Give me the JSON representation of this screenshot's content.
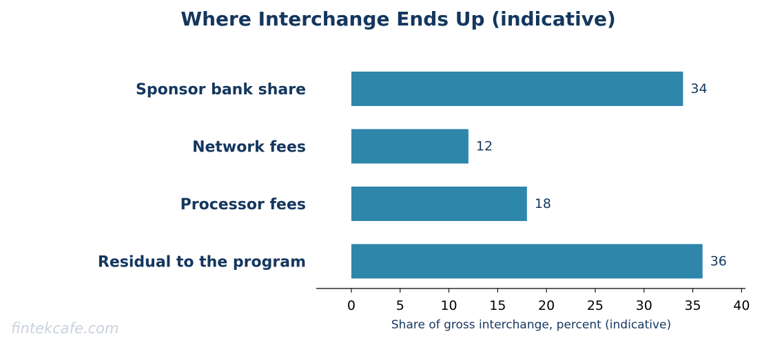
{
  "chart_data": {
    "type": "bar",
    "orientation": "horizontal",
    "title": "Where Interchange Ends Up (indicative)",
    "xlabel": "Share of gross interchange, percent (indicative)",
    "ylabel": "",
    "categories": [
      "Sponsor bank share",
      "Network fees",
      "Processor fees",
      "Residual to the program"
    ],
    "values": [
      34,
      12,
      18,
      36
    ],
    "data_labels": [
      "34",
      "12",
      "18",
      "36"
    ],
    "xlim": [
      -3.6,
      40.4
    ],
    "xticks": [
      0,
      5,
      10,
      15,
      20,
      25,
      30,
      35,
      40
    ],
    "xtick_labels": [
      "0",
      "5",
      "10",
      "15",
      "20",
      "25",
      "30",
      "35",
      "40"
    ],
    "grid": false,
    "legend": "none"
  },
  "watermark": "fintekcafe.com",
  "colors": {
    "bar": "#2e86ab",
    "title": "#14375e",
    "labels": "#14375e",
    "axis": "#000000",
    "watermark": "#c9d1dc"
  }
}
